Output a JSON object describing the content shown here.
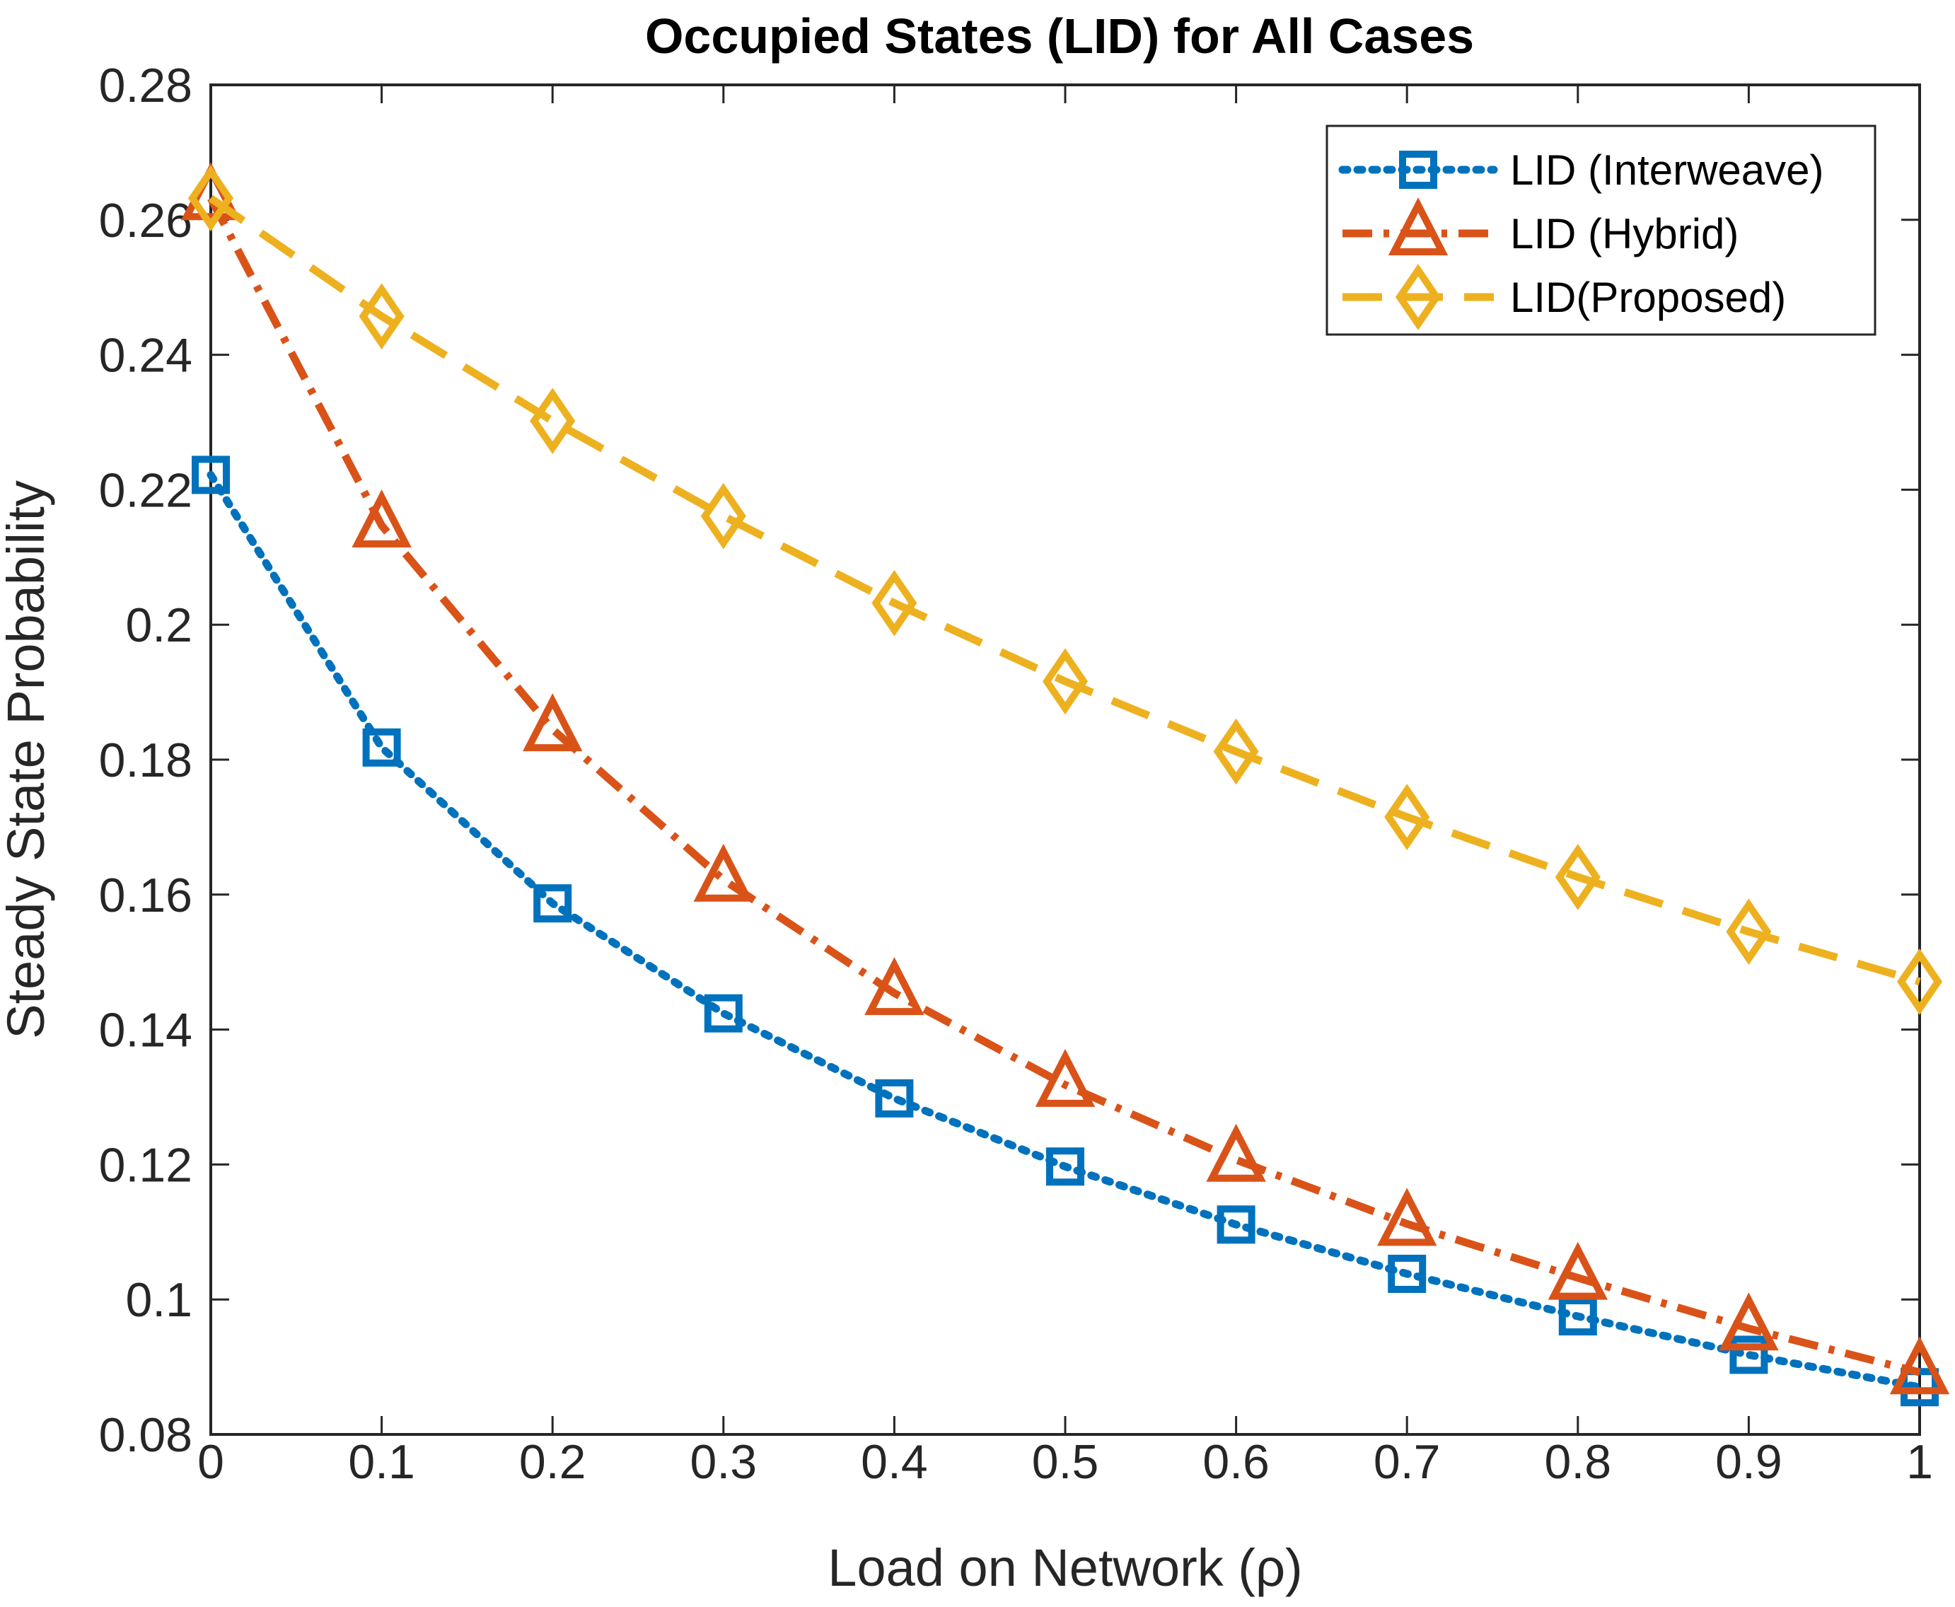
{
  "chart_data": {
    "type": "line",
    "title": "Occupied States (LID) for All Cases",
    "xlabel": "Load on Network (ρ)",
    "ylabel": "Steady State Probability",
    "xlim": [
      0,
      1
    ],
    "ylim": [
      0.08,
      0.28
    ],
    "x": [
      0,
      0.1,
      0.2,
      0.3,
      0.4,
      0.5,
      0.6,
      0.7,
      0.8,
      0.9,
      1
    ],
    "xticks": [
      0,
      0.1,
      0.2,
      0.3,
      0.4,
      0.5,
      0.6,
      0.7,
      0.8,
      0.9,
      1
    ],
    "xtick_labels": [
      "0",
      "0.1",
      "0.2",
      "0.3",
      "0.4",
      "0.5",
      "0.6",
      "0.7",
      "0.8",
      "0.9",
      "1"
    ],
    "yticks": [
      0.08,
      0.1,
      0.12,
      0.14,
      0.16,
      0.18,
      0.2,
      0.22,
      0.24,
      0.26,
      0.28
    ],
    "ytick_labels": [
      "0.08",
      "0.1",
      "0.12",
      "0.14",
      "0.16",
      "0.18",
      "0.2",
      "0.22",
      "0.24",
      "0.26",
      "0.28"
    ],
    "grid": false,
    "legend_position": "top-right",
    "series": [
      {
        "name": "LID (Interweave)",
        "color": "#0072BD",
        "line_style": "dotted",
        "marker": "square",
        "values": [
          0.2222,
          0.1818,
          0.1587,
          0.1424,
          0.1298,
          0.1197,
          0.1111,
          0.1038,
          0.0975,
          0.0918,
          0.087
        ]
      },
      {
        "name": "LID (Hybrid)",
        "color": "#D95319",
        "line_style": "dash-dot",
        "marker": "triangle",
        "values": [
          0.2632,
          0.2147,
          0.1845,
          0.1622,
          0.1454,
          0.1318,
          0.1207,
          0.1112,
          0.1032,
          0.0957,
          0.0892
        ]
      },
      {
        "name": "LID(Proposed)",
        "color": "#EDB120",
        "line_style": "dashed",
        "marker": "diamond",
        "values": [
          0.2632,
          0.2457,
          0.2302,
          0.2161,
          0.2032,
          0.1916,
          0.1812,
          0.1715,
          0.1626,
          0.1545,
          0.1471
        ]
      }
    ]
  }
}
